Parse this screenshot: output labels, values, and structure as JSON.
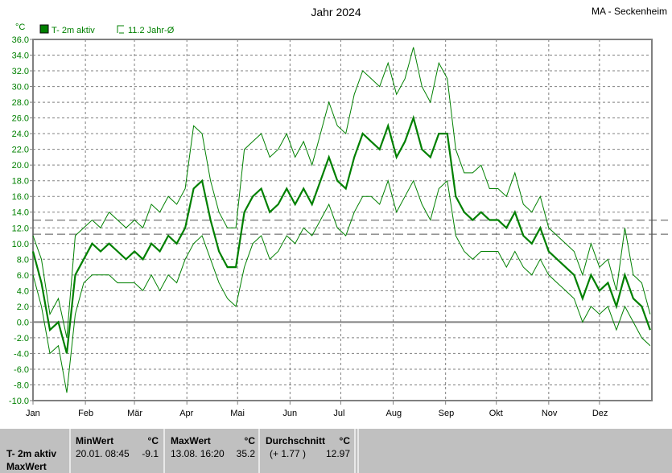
{
  "header": {
    "title": "Jahr 2024",
    "station": "MA - Seckenheim"
  },
  "legend": {
    "series": "T- 2m aktiv",
    "average": "11.2 Jahr-Ø"
  },
  "colors": {
    "series": "#008000",
    "grid": "#808080"
  },
  "chart_data": {
    "type": "line",
    "yunit": "°C",
    "ylim": [
      -10,
      36
    ],
    "yticks": [
      "36.0",
      "34.0",
      "32.0",
      "30.0",
      "28.0",
      "26.0",
      "24.0",
      "22.0",
      "20.0",
      "18.0",
      "16.0",
      "14.0",
      "12.0",
      "10.0",
      "8.0",
      "6.0",
      "4.0",
      "2.0",
      "0.0",
      "-2.0",
      "-4.0",
      "-6.0",
      "-8.0",
      "-10.0"
    ],
    "xticks": [
      "Jan",
      "Feb",
      "Mär",
      "Apr",
      "Mai",
      "Jun",
      "Jul",
      "Aug",
      "Sep",
      "Okt",
      "Nov",
      "Dez"
    ],
    "grid": true,
    "reference_lines": [
      {
        "label": "Durchschnitt",
        "value": 12.97
      },
      {
        "label": "Jahr-Ø",
        "value": 11.2
      }
    ],
    "x": [
      "2024-01-01",
      "2024-01-06",
      "2024-01-11",
      "2024-01-16",
      "2024-01-21",
      "2024-01-26",
      "2024-01-31",
      "2024-02-05",
      "2024-02-10",
      "2024-02-15",
      "2024-02-20",
      "2024-02-25",
      "2024-03-01",
      "2024-03-06",
      "2024-03-11",
      "2024-03-16",
      "2024-03-21",
      "2024-03-26",
      "2024-03-31",
      "2024-04-05",
      "2024-04-10",
      "2024-04-15",
      "2024-04-20",
      "2024-04-25",
      "2024-04-30",
      "2024-05-05",
      "2024-05-10",
      "2024-05-15",
      "2024-05-20",
      "2024-05-25",
      "2024-05-30",
      "2024-06-04",
      "2024-06-09",
      "2024-06-14",
      "2024-06-19",
      "2024-06-24",
      "2024-06-29",
      "2024-07-04",
      "2024-07-09",
      "2024-07-14",
      "2024-07-19",
      "2024-07-24",
      "2024-07-29",
      "2024-08-03",
      "2024-08-08",
      "2024-08-13",
      "2024-08-18",
      "2024-08-23",
      "2024-08-28",
      "2024-09-02",
      "2024-09-07",
      "2024-09-12",
      "2024-09-17",
      "2024-09-22",
      "2024-09-27",
      "2024-10-02",
      "2024-10-07",
      "2024-10-12",
      "2024-10-17",
      "2024-10-22",
      "2024-10-27",
      "2024-11-01",
      "2024-11-06",
      "2024-11-11",
      "2024-11-16",
      "2024-11-21",
      "2024-11-26",
      "2024-12-01",
      "2024-12-06",
      "2024-12-11",
      "2024-12-16",
      "2024-12-21",
      "2024-12-26",
      "2024-12-31"
    ],
    "series": [
      {
        "role": "mean",
        "values": [
          9,
          5,
          -1,
          0,
          -4,
          6,
          8,
          10,
          9,
          10,
          9,
          8,
          9,
          8,
          10,
          9,
          11,
          10,
          12,
          17,
          18,
          13,
          9,
          7,
          7,
          14,
          16,
          17,
          14,
          15,
          17,
          15,
          17,
          15,
          18,
          21,
          18,
          17,
          21,
          24,
          23,
          22,
          25,
          21,
          23,
          26,
          22,
          21,
          24,
          24,
          16,
          14,
          13,
          14,
          13,
          13,
          12,
          14,
          11,
          10,
          12,
          9,
          8,
          7,
          6,
          3,
          6,
          4,
          5,
          2,
          6,
          3,
          2,
          -1
        ]
      },
      {
        "role": "max",
        "values": [
          11,
          8,
          1,
          3,
          -2,
          11,
          12,
          13,
          12,
          14,
          13,
          12,
          13,
          12,
          15,
          14,
          16,
          15,
          17,
          25,
          24,
          18,
          14,
          12,
          12,
          22,
          23,
          24,
          21,
          22,
          24,
          21,
          23,
          20,
          24,
          28,
          25,
          24,
          29,
          32,
          31,
          30,
          33,
          29,
          31,
          35,
          30,
          28,
          33,
          31,
          22,
          19,
          19,
          20,
          17,
          17,
          16,
          19,
          15,
          14,
          16,
          12,
          11,
          10,
          9,
          6,
          10,
          7,
          8,
          4,
          12,
          6,
          5,
          1
        ]
      },
      {
        "role": "min",
        "values": [
          6,
          2,
          -4,
          -3,
          -9,
          1,
          5,
          6,
          6,
          6,
          5,
          5,
          5,
          4,
          6,
          4,
          6,
          5,
          8,
          10,
          11,
          8,
          5,
          3,
          2,
          7,
          10,
          11,
          8,
          9,
          11,
          10,
          12,
          11,
          13,
          15,
          12,
          11,
          14,
          16,
          16,
          15,
          18,
          14,
          16,
          18,
          15,
          13,
          17,
          18,
          11,
          9,
          8,
          9,
          9,
          9,
          7,
          9,
          7,
          6,
          8,
          6,
          5,
          4,
          3,
          0,
          2,
          1,
          2,
          -1,
          2,
          0,
          -2,
          -3
        ]
      }
    ]
  },
  "panel": {
    "row_label1": "T- 2m aktiv",
    "row_label2": "MaxWert",
    "min": {
      "title": "MinWert",
      "unit": "°C",
      "time": "20.01.  08:45",
      "value": "-9.1"
    },
    "max": {
      "title": "MaxWert",
      "unit": "°C",
      "time": "13.08.  16:20",
      "value": "35.2"
    },
    "avg": {
      "title": "Durchschnitt",
      "unit": "°C",
      "diff": "(+ 1.77 )",
      "value": "12.97"
    }
  }
}
